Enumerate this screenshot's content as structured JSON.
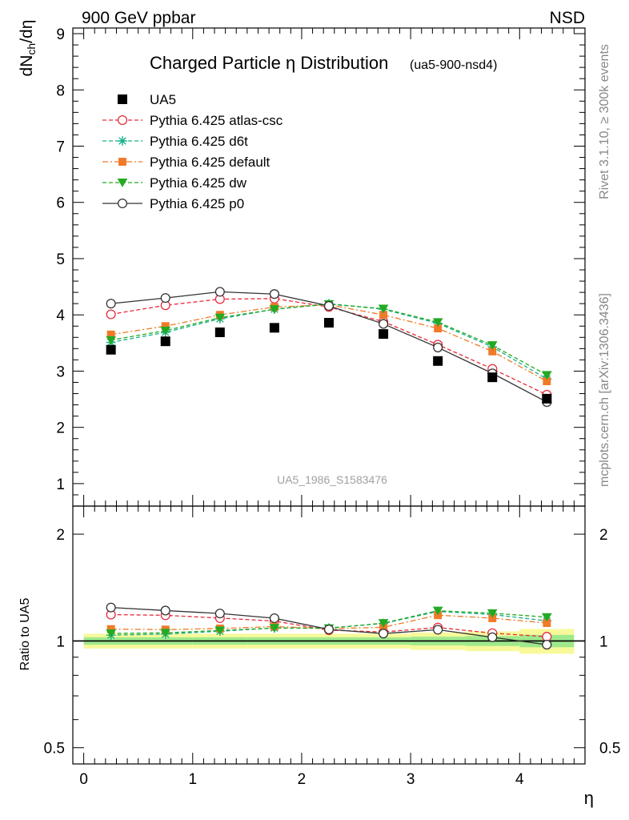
{
  "header": {
    "left": "900 GeV ppbar",
    "right": "NSD"
  },
  "side_text": {
    "top": "Rivet 3.1.10, ≥ 300k events",
    "bottom": "mcplots.cern.ch [arXiv:1306.3436]"
  },
  "chart_data": {
    "type": "line",
    "title": "Charged Particle η Distribution",
    "subtitle": "(ua5-900-nsd4)",
    "xlabel": "η",
    "ylabel_main": "dN",
    "ylabel_sub": "ch",
    "ylabel_tail": "/dη",
    "ratio_ylabel": "Ratio to UA5",
    "watermark": "UA5_1986_S1583476",
    "xlim": [
      -0.1,
      4.6
    ],
    "ylim_main": [
      0.6,
      9.1
    ],
    "ylim_ratio": [
      0.45,
      2.4
    ],
    "ratio_log_scale": true,
    "x_ticks": [
      "0",
      "1",
      "2",
      "3",
      "4"
    ],
    "y_ticks_main": [
      "1",
      "2",
      "3",
      "4",
      "5",
      "6",
      "7",
      "8",
      "9"
    ],
    "y_ticks_ratio": [
      "0.5",
      "1",
      "2"
    ],
    "legend_position": "top-left",
    "x": [
      0.25,
      0.75,
      1.25,
      1.75,
      2.25,
      2.75,
      3.25,
      3.75,
      4.25
    ],
    "data": {
      "name": "UA5",
      "values": [
        3.38,
        3.53,
        3.69,
        3.77,
        3.86,
        3.66,
        3.18,
        2.89,
        2.51
      ]
    },
    "series": [
      {
        "name": "Pythia 6.425 atlas-csc",
        "color": "#e8293c",
        "marker": "open-circle",
        "dash": "dash",
        "values": [
          4.01,
          4.17,
          4.28,
          4.29,
          4.14,
          3.88,
          3.47,
          3.04,
          2.58
        ]
      },
      {
        "name": "Pythia 6.425 d6t",
        "color": "#18b08a",
        "marker": "star",
        "dash": "dash",
        "values": [
          3.51,
          3.69,
          3.93,
          4.1,
          4.2,
          4.1,
          3.85,
          3.43,
          2.86
        ]
      },
      {
        "name": "Pythia 6.425 default",
        "color": "#f07a28",
        "marker": "square",
        "dash": "dashdot",
        "values": [
          3.65,
          3.8,
          4.0,
          4.14,
          4.18,
          4.0,
          3.76,
          3.35,
          2.82
        ]
      },
      {
        "name": "Pythia 6.425 dw",
        "color": "#22aa22",
        "marker": "down-triangle",
        "dash": "dash",
        "values": [
          3.55,
          3.72,
          3.95,
          4.1,
          4.19,
          4.11,
          3.87,
          3.46,
          2.93
        ]
      },
      {
        "name": "Pythia 6.425 p0",
        "color": "#333333",
        "marker": "open-circle",
        "dash": "solid",
        "values": [
          4.2,
          4.3,
          4.41,
          4.37,
          4.16,
          3.84,
          3.42,
          2.96,
          2.45
        ]
      }
    ]
  }
}
